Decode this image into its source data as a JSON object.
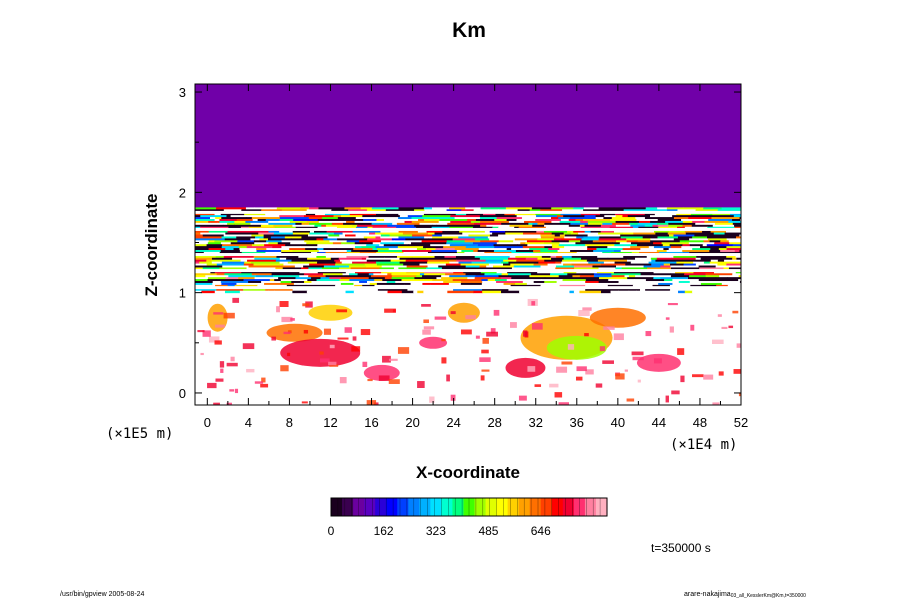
{
  "chart_data": {
    "type": "heatmap",
    "title": "Km",
    "xlabel": "X-coordinate",
    "ylabel": "Z-coordinate",
    "x_multiplier_label": "(×1E4 m)",
    "y_multiplier_label": "(×1E5 m)",
    "xlim": [
      -1.2,
      52
    ],
    "ylim": [
      -0.12,
      3.08
    ],
    "x_ticks": [
      "0",
      "4",
      "8",
      "12",
      "16",
      "20",
      "24",
      "28",
      "32",
      "36",
      "40",
      "44",
      "48",
      "52"
    ],
    "y_ticks": [
      "0",
      "1",
      "2",
      "3"
    ],
    "x_tick_values": [
      0,
      4,
      8,
      12,
      16,
      20,
      24,
      28,
      32,
      36,
      40,
      44,
      48,
      52
    ],
    "y_tick_values": [
      0,
      1,
      2,
      3
    ],
    "colorbar": {
      "min": 0,
      "max": 850,
      "tick_labels": [
        "0",
        "162",
        "323",
        "485",
        "646"
      ],
      "tick_values": [
        0,
        162,
        323,
        485,
        646
      ],
      "colors": [
        "#1a001e",
        "#3a004f",
        "#6a009f",
        "#5a00c0",
        "#2a00d8",
        "#0000ff",
        "#0040ff",
        "#0080ff",
        "#00b0ff",
        "#00e0ff",
        "#00ffd0",
        "#00ff80",
        "#40ff00",
        "#a0ff00",
        "#e0ff00",
        "#ffff00",
        "#ffd000",
        "#ffa000",
        "#ff7000",
        "#ff4000",
        "#ff0000",
        "#f00030",
        "#ff3070",
        "#ff80a0",
        "#ffb0c0"
      ]
    },
    "regions": [
      {
        "name": "upper-uniform",
        "z_range": [
          1.85,
          3.08
        ],
        "value": 0
      },
      {
        "name": "turbulent-bands",
        "z_range": [
          1.0,
          1.85
        ],
        "value_range": [
          0,
          850
        ]
      },
      {
        "name": "lower-cells",
        "z_range": [
          -0.12,
          1.0
        ],
        "value_range": [
          0,
          800
        ]
      }
    ]
  },
  "annotations": {
    "time_label": "t=350000 s",
    "footer_left": "/usr/bin/gpview 2005-08-24",
    "footer_right_main": "arare-nakajima",
    "footer_right_sub": "03_all_KesslerKm@Km,t=350000"
  }
}
